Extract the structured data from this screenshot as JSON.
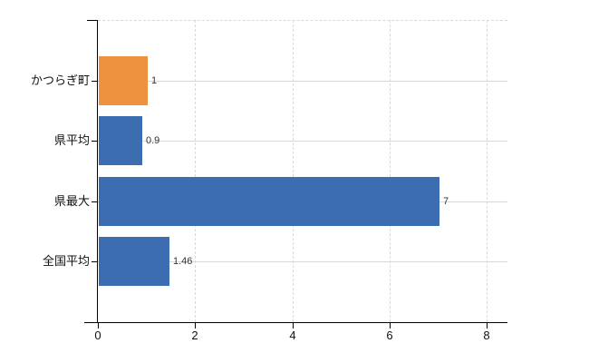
{
  "chart_data": {
    "type": "bar",
    "orientation": "horizontal",
    "categories": [
      "かつらぎ町",
      "県平均",
      "県最大",
      "全国平均"
    ],
    "values": [
      1,
      0.9,
      7,
      1.46
    ],
    "value_labels": [
      "1",
      "0.9",
      "7",
      "1.46"
    ],
    "bar_colors": [
      "#EF9240",
      "#3C6DB0",
      "#3C6DB0",
      "#3C6DB0"
    ],
    "x_ticks": [
      0,
      2,
      4,
      6,
      8
    ],
    "x_tick_labels": [
      "0",
      "2",
      "4",
      "6",
      "8"
    ],
    "xlim": [
      0,
      8.42
    ],
    "grid": "on",
    "legend": "none",
    "colors": {
      "bar_highlight": "#EF9240",
      "bar_default": "#3C6DB0",
      "axis": "#000000",
      "gridline": "#d9d9d9",
      "category_label": "#111111",
      "value_label": "#333333",
      "background": "#ffffff"
    }
  }
}
